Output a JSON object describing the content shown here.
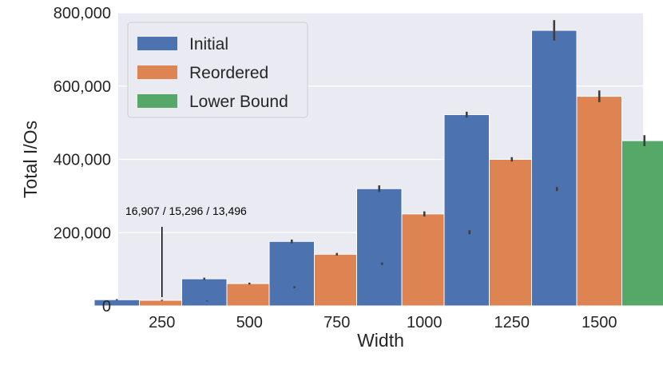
{
  "chart_data": {
    "type": "bar",
    "xlabel": "Width",
    "ylabel": "Total I/Os",
    "categories": [
      "250",
      "500",
      "750",
      "1000",
      "1250",
      "1500"
    ],
    "ylim": [
      0,
      800000
    ],
    "yticks": [
      0,
      200000,
      400000,
      600000,
      800000
    ],
    "ytick_labels": [
      "0",
      "200,000",
      "400,000",
      "600,000",
      "800,000"
    ],
    "grid": true,
    "legend_position": "top-left",
    "series": [
      {
        "name": "Initial",
        "color": "#4c72b0",
        "values": [
          16907,
          74000,
          176000,
          320000,
          522000,
          752000
        ],
        "error": [
          1500,
          3000,
          5000,
          9000,
          8000,
          28000
        ]
      },
      {
        "name": "Reordered",
        "color": "#dd8452",
        "values": [
          15296,
          61000,
          141000,
          251000,
          400000,
          572000
        ],
        "error": [
          1200,
          2500,
          3500,
          7000,
          6000,
          16000
        ]
      },
      {
        "name": "Lower Bound",
        "color": "#55a868",
        "values": [
          13496,
          51000,
          115000,
          201000,
          319000,
          451000
        ],
        "error": [
          1000,
          2500,
          3500,
          5500,
          5500,
          15000
        ]
      }
    ],
    "annotations": [
      {
        "text": "16,907 / 15,296 / 13,496",
        "category": "250"
      }
    ]
  }
}
